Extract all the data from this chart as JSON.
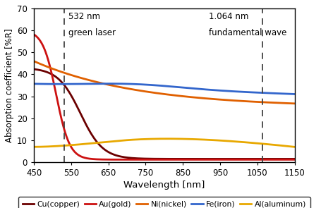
{
  "xlabel": "Wavelength [nm]",
  "ylabel": "Absorption coefficient [%R]",
  "xlim": [
    450,
    1150
  ],
  "ylim": [
    0,
    70
  ],
  "yticks": [
    0,
    10,
    20,
    30,
    40,
    50,
    60,
    70
  ],
  "xticks": [
    450,
    550,
    650,
    750,
    850,
    950,
    1050,
    1150
  ],
  "vline1": 532,
  "vline2": 1064,
  "vline1_label1": "532 nm",
  "vline1_label2": "green laser",
  "vline2_label1": "1.064 nm",
  "vline2_label2": "fundamental wave",
  "background_color": "#ffffff",
  "colors": {
    "Cu": "#6B0000",
    "Au": "#CC1111",
    "Ni": "#E06000",
    "Fe": "#3366CC",
    "Al": "#E8A800"
  },
  "legend_labels": [
    "Cu(copper)",
    "Au(gold)",
    "Ni(nickel)",
    "Fe(iron)",
    "Al(aluminum)"
  ]
}
